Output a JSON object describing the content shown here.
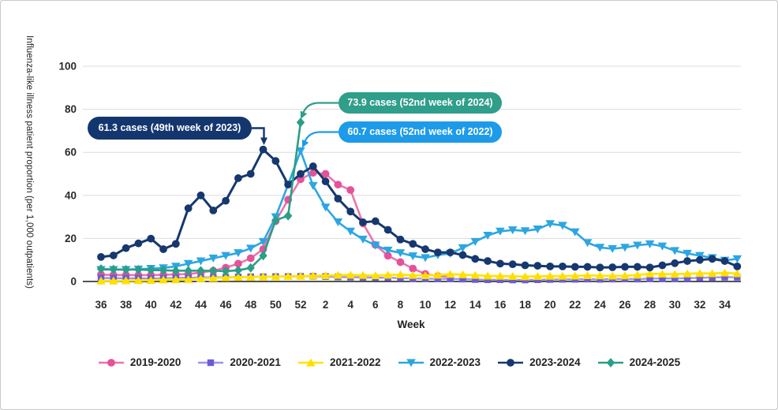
{
  "chart_data": {
    "type": "line",
    "title": "",
    "xlabel": "Week",
    "ylabel": "Influenza-like illness patient proportion (per 1,000 outpatients)",
    "ylim": [
      0,
      100
    ],
    "yticks": [
      0,
      20,
      40,
      60,
      80,
      100
    ],
    "grid_color": "#dcdcdc",
    "axis_color": "#1a1a1a",
    "legend_position": "bottom",
    "x_categories": [
      "36",
      "37",
      "38",
      "39",
      "40",
      "41",
      "42",
      "43",
      "44",
      "45",
      "46",
      "47",
      "48",
      "49",
      "50",
      "51",
      "52",
      "1",
      "2",
      "3",
      "4",
      "5",
      "6",
      "7",
      "8",
      "9",
      "10",
      "11",
      "12",
      "13",
      "14",
      "15",
      "16",
      "17",
      "18",
      "19",
      "20",
      "21",
      "22",
      "23",
      "24",
      "25",
      "26",
      "27",
      "28",
      "29",
      "30",
      "31",
      "32",
      "33",
      "34",
      "35"
    ],
    "xticks_shown": [
      "36",
      "38",
      "40",
      "42",
      "44",
      "46",
      "48",
      "50",
      "52",
      "2",
      "4",
      "6",
      "8",
      "10",
      "12",
      "14",
      "16",
      "18",
      "20",
      "22",
      "24",
      "26",
      "28",
      "30",
      "32",
      "34"
    ],
    "series": [
      {
        "name": "2019-2020",
        "color": "#e4529a",
        "line_color": "#ec74ab",
        "marker": "circle",
        "width": 2.6,
        "values": [
          3.2,
          3,
          3,
          2.9,
          3,
          3.1,
          3.3,
          3.4,
          4.2,
          5,
          6.4,
          8.3,
          10.8,
          15,
          28,
          38,
          47.5,
          50.5,
          50,
          45,
          42.5,
          27,
          17,
          12,
          9,
          6,
          3.5,
          2.5,
          2.2,
          null,
          null,
          null,
          null,
          null,
          null,
          null,
          null,
          null,
          null,
          null,
          null,
          null,
          null,
          null,
          null,
          null,
          null,
          null,
          null,
          null,
          null,
          null
        ]
      },
      {
        "name": "2020-2021",
        "color": "#6a5cd8",
        "line_color": "#9b94ee",
        "marker": "square",
        "width": 2.4,
        "values": [
          1.6,
          1.6,
          1.5,
          1.5,
          1.4,
          1.5,
          1.6,
          1.7,
          1.9,
          2,
          2,
          2.1,
          2.2,
          2.2,
          2.3,
          2.3,
          2.4,
          2.4,
          2.3,
          2.1,
          2,
          1.9,
          1.8,
          1.7,
          1.6,
          1.4,
          1.3,
          1.2,
          1.2,
          1.1,
          0.9,
          0.8,
          0.8,
          0.7,
          0.7,
          0.8,
          0.9,
          1,
          1,
          1.1,
          1,
          1.1,
          1.2,
          1.1,
          1.3,
          1.4,
          1.4,
          1.5,
          1.7,
          1.9,
          2,
          2
        ]
      },
      {
        "name": "2021-2022",
        "color": "#ffdf00",
        "line_color": "#ffe409",
        "marker": "triangle-up",
        "width": 2.8,
        "values": [
          0.3,
          0.3,
          0.4,
          0.5,
          0.6,
          0.8,
          0.9,
          1,
          1.4,
          1.6,
          1.8,
          2,
          2.1,
          2.2,
          2.3,
          2.4,
          2.5,
          2.7,
          2.8,
          2.9,
          3,
          2.9,
          2.8,
          3,
          3.2,
          2.9,
          2.8,
          3,
          3.4,
          3.2,
          2.9,
          2.6,
          2.5,
          2.4,
          2.3,
          2.4,
          2.5,
          2.5,
          2.6,
          2.8,
          2.7,
          2.6,
          2.7,
          3,
          3.6,
          3.5,
          3.4,
          3.6,
          3.8,
          3.7,
          4,
          3.7
        ]
      },
      {
        "name": "2022-2023",
        "color": "#2ca6e2",
        "line_color": "#2ca6e2",
        "marker": "triangle-down",
        "width": 2.6,
        "values": [
          5.5,
          5.5,
          5.5,
          5.7,
          6,
          6.3,
          7,
          8.3,
          9.5,
          10.8,
          12,
          13.3,
          15.4,
          18.5,
          30,
          45,
          60.7,
          44.5,
          34.5,
          27.6,
          23.3,
          19.6,
          16.8,
          14.5,
          13.3,
          11.8,
          11,
          12.3,
          13,
          15.6,
          18.5,
          21.4,
          23.3,
          23.9,
          23.5,
          24.3,
          26.8,
          26,
          23,
          18,
          15.8,
          15.2,
          15.8,
          16.8,
          17.4,
          16.4,
          14.3,
          13,
          12,
          11,
          9.8,
          10.5
        ]
      },
      {
        "name": "2023-2024",
        "color": "#16386f",
        "line_color": "#16386f",
        "marker": "circle",
        "width": 3,
        "values": [
          11.4,
          12.1,
          15.5,
          17.7,
          19.9,
          15,
          17.5,
          34,
          40,
          33,
          37.5,
          48,
          50,
          61.3,
          56,
          45,
          50,
          53.5,
          46.5,
          38.5,
          32.5,
          27.5,
          28,
          24,
          19.5,
          17.5,
          15,
          13.5,
          13.5,
          12.3,
          10.5,
          9.5,
          8.3,
          8,
          7.5,
          7.3,
          7,
          7,
          6.8,
          6.8,
          6.5,
          6.6,
          6.8,
          6.8,
          6.5,
          7.5,
          8.5,
          9.5,
          10,
          10.5,
          9.5,
          7
        ]
      },
      {
        "name": "2024-2025",
        "color": "#2b9e88",
        "line_color": "#2b9e88",
        "marker": "diamond",
        "width": 2.6,
        "values": [
          5.8,
          5.6,
          5.5,
          5.5,
          5.3,
          5.2,
          5,
          5,
          5,
          5,
          4.8,
          5.2,
          6.3,
          12,
          28.5,
          30.5,
          73.9,
          null,
          null,
          null,
          null,
          null,
          null,
          null,
          null,
          null,
          null,
          null,
          null,
          null,
          null,
          null,
          null,
          null,
          null,
          null,
          null,
          null,
          null,
          null,
          null,
          null,
          null,
          null,
          null,
          null,
          null,
          null,
          null,
          null,
          null,
          null
        ]
      }
    ],
    "annotations": [
      {
        "text": "61.3 cases (49th week of 2023)",
        "color": "#14366f",
        "series": "2023-2024",
        "week": "49",
        "value": 61.3
      },
      {
        "text": "73.9 cases (52nd week of 2024)",
        "color": "#2f9e8a",
        "series": "2024-2025",
        "week": "52",
        "value": 73.9
      },
      {
        "text": "60.7 cases (52nd week of 2022)",
        "color": "#1d9be9",
        "series": "2022-2023",
        "week": "52",
        "value": 60.7
      }
    ]
  }
}
